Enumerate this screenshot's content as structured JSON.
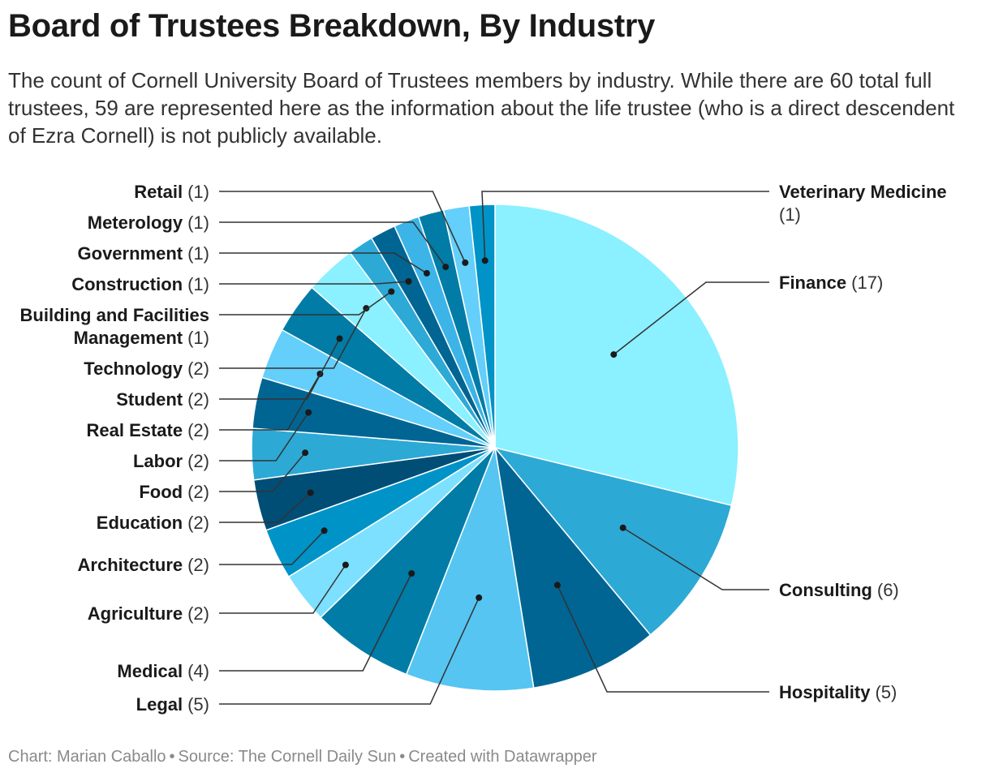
{
  "header": {
    "title": "Board of Trustees Breakdown, By Industry",
    "subtitle": "The count of Cornell University Board of Trustees members by industry. While there are 60 total full trustees, 59 are represented here as the information about the life trustee (who is a direct descendent of Ezra Cornell) is not publicly available."
  },
  "footer": {
    "chart_credit": "Chart: Marian Caballo",
    "source": "Source: The Cornell Daily Sun",
    "tool": "Created with Datawrapper",
    "separator": "•"
  },
  "chart_data": {
    "type": "pie",
    "title": "Board of Trustees Breakdown, By Industry",
    "total": 59,
    "start": "12 o'clock, clockwise",
    "slices": [
      {
        "label": "Finance",
        "value": 17,
        "color": "#8BF0FF",
        "side": "right"
      },
      {
        "label": "Consulting",
        "value": 6,
        "color": "#2DA9D6",
        "side": "right"
      },
      {
        "label": "Hospitality",
        "value": 5,
        "color": "#006593",
        "side": "right"
      },
      {
        "label": "Legal",
        "value": 5,
        "color": "#56C5F1",
        "side": "left"
      },
      {
        "label": "Medical",
        "value": 4,
        "color": "#007CA6",
        "side": "left"
      },
      {
        "label": "Agriculture",
        "value": 2,
        "color": "#7DE0FF",
        "side": "left"
      },
      {
        "label": "Architecture",
        "value": 2,
        "color": "#0093C7",
        "side": "left"
      },
      {
        "label": "Education",
        "value": 2,
        "color": "#004E76",
        "side": "left"
      },
      {
        "label": "Food",
        "value": 2,
        "color": "#2DA9D6",
        "side": "left"
      },
      {
        "label": "Labor",
        "value": 2,
        "color": "#006593",
        "side": "left"
      },
      {
        "label": "Real Estate",
        "value": 2,
        "color": "#63CFFA",
        "side": "left"
      },
      {
        "label": "Student",
        "value": 2,
        "color": "#007CA6",
        "side": "left"
      },
      {
        "label": "Technology",
        "value": 2,
        "color": "#8BF0FF",
        "side": "left"
      },
      {
        "label": "Building and Facilities Management",
        "value": 1,
        "color": "#2DA9D6",
        "side": "left",
        "lines": [
          "Building and Facilities",
          "Management"
        ]
      },
      {
        "label": "Construction",
        "value": 1,
        "color": "#006593",
        "side": "left"
      },
      {
        "label": "Government",
        "value": 1,
        "color": "#3DB4E8",
        "side": "left"
      },
      {
        "label": "Meterology",
        "value": 1,
        "color": "#007CA6",
        "side": "left"
      },
      {
        "label": "Retail",
        "value": 1,
        "color": "#63CFFA",
        "side": "left"
      },
      {
        "label": "Veterinary Medicine",
        "value": 1,
        "color": "#0093C7",
        "side": "right",
        "lines": [
          "Veterinary Medicine"
        ]
      }
    ]
  }
}
